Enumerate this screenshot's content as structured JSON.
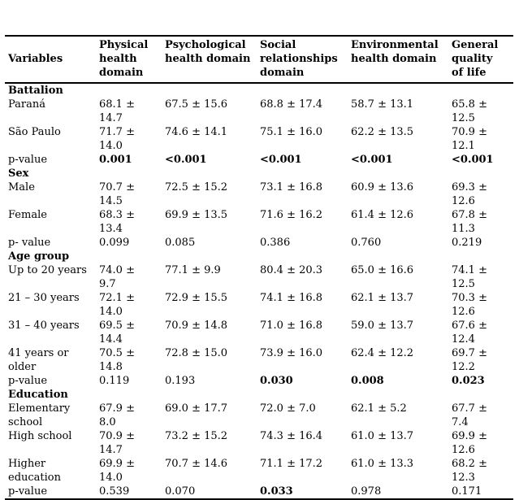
{
  "table": {
    "columns": [
      {
        "label": "Variables"
      },
      {
        "label": "Physical\nhealth\ndomain"
      },
      {
        "label": "Psychological\nhealth domain"
      },
      {
        "label": "Social\nrelationships\ndomain"
      },
      {
        "label": "Environmental\nhealth domain"
      },
      {
        "label": "General\nquality\nof life"
      }
    ],
    "rows": [
      {
        "type": "section",
        "label": "Battalion"
      },
      {
        "type": "data",
        "label": "Paraná",
        "cells": [
          "68.1 ±\n14.7",
          "67.5 ± 15.6",
          "68.8 ± 17.4",
          "58.7 ± 13.1",
          "65.8 ±\n12.5"
        ],
        "bold": [
          false,
          false,
          false,
          false,
          false
        ]
      },
      {
        "type": "data",
        "label": "São Paulo",
        "cells": [
          "71.7 ±\n14.0",
          "74.6 ± 14.1",
          "75.1 ± 16.0",
          "62.2 ± 13.5",
          "70.9 ±\n12.1"
        ],
        "bold": [
          false,
          false,
          false,
          false,
          false
        ]
      },
      {
        "type": "data",
        "label": "p-value",
        "cells": [
          "0.001",
          "<0.001",
          "<0.001",
          "<0.001",
          "<0.001"
        ],
        "bold": [
          true,
          true,
          true,
          true,
          true
        ]
      },
      {
        "type": "section",
        "label": "Sex"
      },
      {
        "type": "data",
        "label": "Male",
        "cells": [
          "70.7 ±\n14.5",
          "72.5 ± 15.2",
          "73.1 ± 16.8",
          "60.9 ± 13.6",
          "69.3 ±\n12.6"
        ],
        "bold": [
          false,
          false,
          false,
          false,
          false
        ]
      },
      {
        "type": "data",
        "label": "Female",
        "cells": [
          "68.3 ±\n13.4",
          "69.9 ± 13.5",
          "71.6 ± 16.2",
          "61.4 ± 12.6",
          "67.8 ±\n11.3"
        ],
        "bold": [
          false,
          false,
          false,
          false,
          false
        ]
      },
      {
        "type": "data",
        "label": "p- value",
        "cells": [
          "0.099",
          "0.085",
          "0.386",
          "0.760",
          "0.219"
        ],
        "bold": [
          false,
          false,
          false,
          false,
          false
        ]
      },
      {
        "type": "section",
        "label": "Age group"
      },
      {
        "type": "data",
        "label": "Up to 20 years",
        "cells": [
          "74.0 ±\n9.7",
          "77.1 ± 9.9",
          "80.4 ± 20.3",
          "65.0 ± 16.6",
          "74.1 ±\n12.5"
        ],
        "bold": [
          false,
          false,
          false,
          false,
          false
        ]
      },
      {
        "type": "data",
        "label": "21 – 30 years",
        "cells": [
          "72.1 ±\n14.0",
          "72.9 ± 15.5",
          "74.1 ± 16.8",
          "62.1 ± 13.7",
          "70.3 ±\n12.6"
        ],
        "bold": [
          false,
          false,
          false,
          false,
          false
        ]
      },
      {
        "type": "data",
        "label": "31 – 40 years",
        "cells": [
          "69.5 ±\n14.4",
          "70.9 ± 14.8",
          "71.0 ± 16.8",
          "59.0 ± 13.7",
          "67.6 ±\n12.4"
        ],
        "bold": [
          false,
          false,
          false,
          false,
          false
        ]
      },
      {
        "type": "data",
        "label": "41 years or\nolder",
        "cells": [
          "70.5 ±\n14.8",
          "72.8 ± 15.0",
          "73.9 ± 16.0",
          "62.4 ± 12.2",
          "69.7 ±\n12.2"
        ],
        "bold": [
          false,
          false,
          false,
          false,
          false
        ]
      },
      {
        "type": "data",
        "label": "p-value",
        "cells": [
          "0.119",
          "0.193",
          "0.030",
          "0.008",
          "0.023"
        ],
        "bold": [
          false,
          false,
          true,
          true,
          true
        ]
      },
      {
        "type": "section",
        "label": "Education"
      },
      {
        "type": "data",
        "label": "Elementary\nschool",
        "cells": [
          "67.9 ±\n8.0",
          "69.0 ± 17.7",
          "72.0 ± 7.0",
          "62.1 ± 5.2",
          "67.7 ±\n7.4"
        ],
        "bold": [
          false,
          false,
          false,
          false,
          false
        ]
      },
      {
        "type": "data",
        "label": "High school",
        "cells": [
          "70.9 ±\n14.7",
          "73.2 ± 15.2",
          "74.3 ± 16.4",
          "61.0 ± 13.7",
          "69.9 ±\n12.6"
        ],
        "bold": [
          false,
          false,
          false,
          false,
          false
        ]
      },
      {
        "type": "data",
        "label": "Higher\neducation",
        "cells": [
          "69.9 ±\n14.0",
          "70.7 ± 14.6",
          "71.1 ± 17.2",
          "61.0 ± 13.3",
          "68.2 ±\n12.3"
        ],
        "bold": [
          false,
          false,
          false,
          false,
          false
        ]
      },
      {
        "type": "data",
        "label": "p-value",
        "cells": [
          "0.539",
          "0.070",
          "0.033",
          "0.978",
          "0.171"
        ],
        "bold": [
          false,
          false,
          true,
          false,
          false
        ]
      }
    ]
  }
}
